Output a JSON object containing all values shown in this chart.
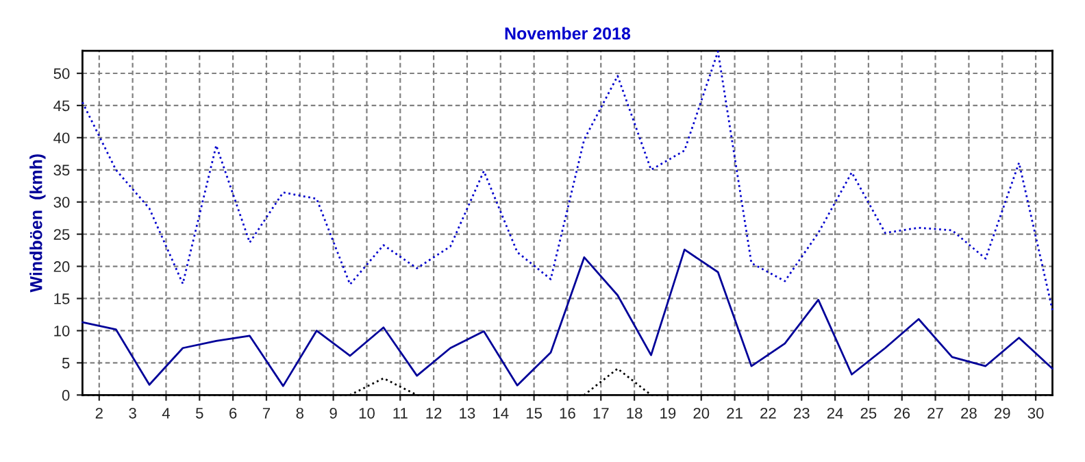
{
  "chart_data": {
    "type": "line",
    "title": "November 2018",
    "ylabel": "Windböen  (kmh)",
    "x": [
      1.5,
      2.5,
      3.5,
      4.5,
      5.5,
      6.5,
      7.5,
      8.5,
      9.5,
      10.5,
      11.5,
      12.5,
      13.5,
      14.5,
      15.5,
      16.5,
      17.5,
      18.5,
      19.5,
      20.5,
      21.5,
      22.5,
      23.5,
      24.5,
      25.5,
      26.5,
      27.5,
      28.5,
      29.5,
      30.5
    ],
    "series": [
      {
        "color": "#0000cc",
        "line_style": "dotted",
        "values": [
          45.5,
          35,
          29,
          17.3,
          38.8,
          23.7,
          31.5,
          30.5,
          17.2,
          23.3,
          19.7,
          23.1,
          34.8,
          22.2,
          18,
          39.7,
          49.6,
          35,
          38,
          53.4,
          20.5,
          17.7,
          25.2,
          34.6,
          25.2,
          26,
          25.6,
          21.2,
          36.1,
          13.2
        ]
      },
      {
        "color": "#000099",
        "line_style": "solid",
        "values": [
          11.3,
          10.2,
          1.6,
          7.3,
          8.4,
          9.2,
          1.4,
          10,
          6.1,
          10.5,
          3.0,
          7.3,
          9.9,
          1.5,
          6.6,
          21.4,
          15.5,
          6.2,
          22.6,
          19.1,
          4.5,
          8.0,
          14.8,
          3.2,
          7.3,
          11.8,
          5.9,
          4.5,
          8.9,
          4.1
        ]
      },
      {
        "color": "#000000",
        "line_style": "dotted",
        "values": [
          0,
          0,
          0,
          0,
          0,
          0,
          0,
          0,
          0,
          2.6,
          0,
          0,
          0,
          0,
          0,
          0,
          4.1,
          0,
          0,
          0,
          0,
          0,
          0,
          0,
          0,
          0,
          0,
          0,
          0,
          0
        ]
      }
    ],
    "xlim": [
      1.5,
      30.5
    ],
    "xticks": [
      2,
      3,
      4,
      5,
      6,
      7,
      8,
      9,
      10,
      11,
      12,
      13,
      14,
      15,
      16,
      17,
      18,
      19,
      20,
      21,
      22,
      23,
      24,
      25,
      26,
      27,
      28,
      29,
      30
    ],
    "ylim": [
      0,
      53.5
    ],
    "yticks": [
      0,
      5,
      10,
      15,
      20,
      25,
      30,
      35,
      40,
      45,
      50
    ],
    "grid": true,
    "marker": "none",
    "legend": false
  }
}
